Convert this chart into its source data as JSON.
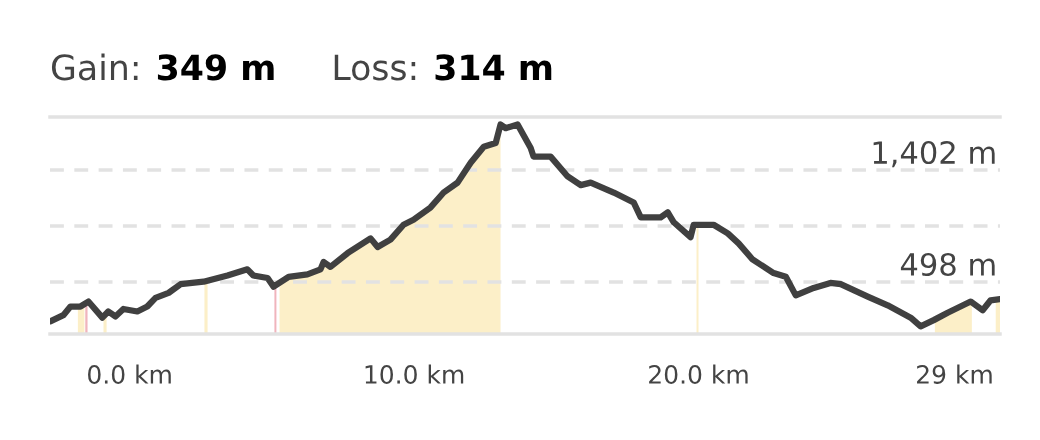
{
  "chart_data": {
    "type": "line",
    "annotations": [
      "Gain:",
      "349 m",
      "Loss:",
      "314 m"
    ],
    "x": [
      -2.79,
      -2.33,
      -2.08,
      -1.73,
      -1.45,
      -0.96,
      -0.75,
      -0.5,
      -0.22,
      0.27,
      0.62,
      0.91,
      1.37,
      1.79,
      2.6,
      3.44,
      4.14,
      4.35,
      4.85,
      5.06,
      5.59,
      6.25,
      6.71,
      6.82,
      7.06,
      7.66,
      8.47,
      8.72,
      9.17,
      9.63,
      9.98,
      10.58,
      11.04,
      11.53,
      11.99,
      12.45,
      12.87,
      13.04,
      13.22,
      13.64,
      14.1,
      14.2,
      14.8,
      15.4,
      15.86,
      16.21,
      17.02,
      17.72,
      17.97,
      18.67,
      18.92,
      19.13,
      19.72,
      19.83,
      20.53,
      21.03,
      21.41,
      21.9,
      22.64,
      23.07,
      23.42,
      24.05,
      24.64,
      25.0,
      25.95,
      26.65,
      27.46,
      27.81,
      28.27,
      28.76,
      29.57,
      29.99,
      30.27,
      30.6
    ],
    "series": [
      {
        "color": "#404040",
        "values": [
          180,
          230,
          300,
          300,
          340,
          210,
          260,
          220,
          280,
          260,
          300,
          370,
          410,
          480,
          500,
          550,
          600,
          550,
          530,
          460,
          540,
          560,
          600,
          660,
          620,
          730,
          850,
          780,
          840,
          960,
          1000,
          1100,
          1220,
          1300,
          1460,
          1590,
          1620,
          1770,
          1740,
          1770,
          1580,
          1510,
          1510,
          1350,
          1280,
          1300,
          1220,
          1140,
          1020,
          1020,
          1060,
          980,
          860,
          960,
          960,
          890,
          810,
          680,
          570,
          540,
          390,
          450,
          490,
          480,
          380,
          310,
          210,
          140,
          190,
          250,
          340,
          270,
          350,
          360
        ]
      }
    ],
    "xlim": [
      -2.8,
      30.6
    ],
    "xticks": [
      {
        "value": 0,
        "label": "0.0 km"
      },
      {
        "value": 10,
        "label": "10.0 km"
      },
      {
        "value": 20,
        "label": "20.0 km"
      },
      {
        "value": 29,
        "label": "29 km"
      }
    ],
    "ylim": [
      78,
      1830
    ],
    "yticks": [
      {
        "value": 498,
        "label": "498 m"
      },
      {
        "value": 950,
        "label": null
      },
      {
        "value": 1402,
        "label": "1,402 m"
      }
    ],
    "grid": "y",
    "line_style": "solid",
    "bands": [
      {
        "axis": "x",
        "from": -1.82,
        "to": -1.59,
        "color": "#fcefc8"
      },
      {
        "axis": "x",
        "from": -1.56,
        "to": -1.48,
        "color": "#f0b4bc"
      },
      {
        "axis": "x",
        "from": -0.92,
        "to": -0.81,
        "color": "#fcefc8"
      },
      {
        "axis": "x",
        "from": 2.63,
        "to": 2.74,
        "color": "#fcefc8"
      },
      {
        "axis": "x",
        "from": 5.09,
        "to": 5.16,
        "color": "#f0b4bc"
      },
      {
        "axis": "x",
        "from": 5.27,
        "to": 13.04,
        "color": "#fcefc8"
      },
      {
        "axis": "x",
        "from": 19.93,
        "to": 20.0,
        "color": "#fcefc8"
      },
      {
        "axis": "x",
        "from": 28.31,
        "to": 29.61,
        "color": "#fcefc8"
      },
      {
        "axis": "x",
        "from": 30.45,
        "to": 30.6,
        "color": "#fcefc8"
      }
    ]
  }
}
